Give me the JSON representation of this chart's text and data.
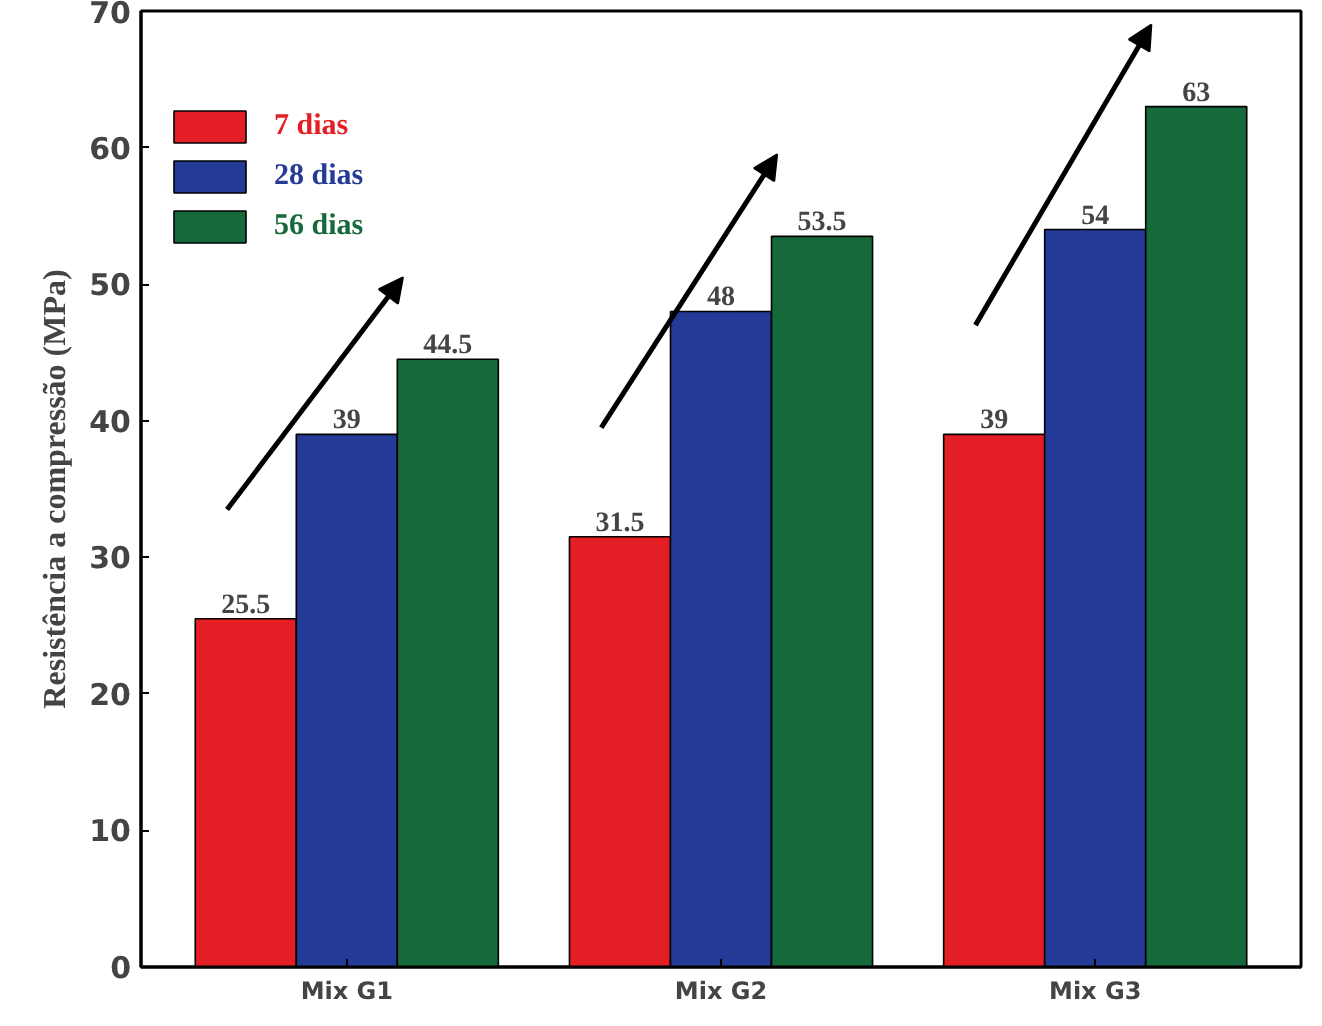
{
  "chart_data": {
    "type": "bar",
    "ylabel": "Resistência a compressão (MPa)",
    "categories": [
      "Mix G1",
      "Mix G2",
      "Mix G3"
    ],
    "series": [
      {
        "name": "7 dias",
        "color": "#e31e24",
        "values": [
          25.5,
          31.5,
          39
        ]
      },
      {
        "name": "28 dias",
        "color": "#233a96",
        "values": [
          39,
          48,
          54
        ]
      },
      {
        "name": "56 dias",
        "color": "#16693a",
        "values": [
          44.5,
          53.5,
          63
        ]
      }
    ],
    "ylim": [
      0,
      70
    ],
    "yticks": [
      0,
      10,
      20,
      30,
      40,
      50,
      60,
      70
    ],
    "grid": false,
    "legend": "top left",
    "data_labels": true
  }
}
